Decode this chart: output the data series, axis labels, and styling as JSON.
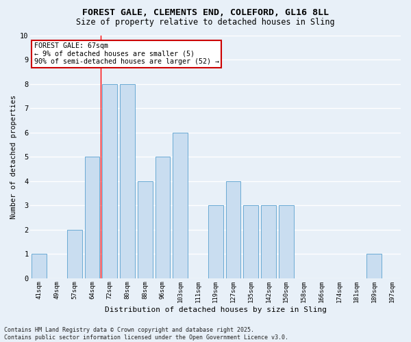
{
  "title1": "FOREST GALE, CLEMENTS END, COLEFORD, GL16 8LL",
  "title2": "Size of property relative to detached houses in Sling",
  "xlabel": "Distribution of detached houses by size in Sling",
  "ylabel": "Number of detached properties",
  "categories": [
    "41sqm",
    "49sqm",
    "57sqm",
    "64sqm",
    "72sqm",
    "80sqm",
    "88sqm",
    "96sqm",
    "103sqm",
    "111sqm",
    "119sqm",
    "127sqm",
    "135sqm",
    "142sqm",
    "150sqm",
    "158sqm",
    "166sqm",
    "174sqm",
    "181sqm",
    "189sqm",
    "197sqm"
  ],
  "values": [
    1,
    0,
    2,
    5,
    8,
    8,
    4,
    5,
    6,
    0,
    3,
    4,
    3,
    3,
    3,
    0,
    0,
    0,
    0,
    1,
    0
  ],
  "bar_color": "#c9ddf0",
  "bar_edgecolor": "#6aaad4",
  "bg_color": "#e8f0f8",
  "grid_color": "#ffffff",
  "annotation_text": "FOREST GALE: 67sqm\n← 9% of detached houses are smaller (5)\n90% of semi-detached houses are larger (52) →",
  "annotation_box_facecolor": "#ffffff",
  "annotation_box_edgecolor": "#cc0000",
  "red_line_x": 3.5,
  "footnote": "Contains HM Land Registry data © Crown copyright and database right 2025.\nContains public sector information licensed under the Open Government Licence v3.0.",
  "ylim": [
    0,
    10
  ],
  "yticks": [
    0,
    1,
    2,
    3,
    4,
    5,
    6,
    7,
    8,
    9,
    10
  ]
}
